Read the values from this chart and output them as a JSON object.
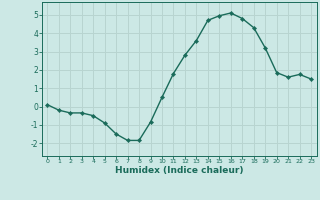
{
  "x": [
    0,
    1,
    2,
    3,
    4,
    5,
    6,
    7,
    8,
    9,
    10,
    11,
    12,
    13,
    14,
    15,
    16,
    17,
    18,
    19,
    20,
    21,
    22,
    23
  ],
  "y": [
    0.1,
    -0.2,
    -0.35,
    -0.35,
    -0.5,
    -0.9,
    -1.5,
    -1.85,
    -1.85,
    -0.85,
    0.5,
    1.8,
    2.8,
    3.6,
    4.7,
    4.95,
    5.1,
    4.8,
    4.3,
    3.2,
    1.85,
    1.6,
    1.75,
    1.5
  ],
  "line_color": "#1a6b5a",
  "marker": "D",
  "marker_size": 2.2,
  "bg_color": "#cce8e5",
  "grid_color": "#b8d4d0",
  "tick_color": "#1a6b5a",
  "label_color": "#1a6b5a",
  "xlabel": "Humidex (Indice chaleur)",
  "ylim": [
    -2.7,
    5.7
  ],
  "xlim": [
    -0.5,
    23.5
  ],
  "yticks": [
    -2,
    -1,
    0,
    1,
    2,
    3,
    4,
    5
  ],
  "xticks": [
    0,
    1,
    2,
    3,
    4,
    5,
    6,
    7,
    8,
    9,
    10,
    11,
    12,
    13,
    14,
    15,
    16,
    17,
    18,
    19,
    20,
    21,
    22,
    23
  ]
}
